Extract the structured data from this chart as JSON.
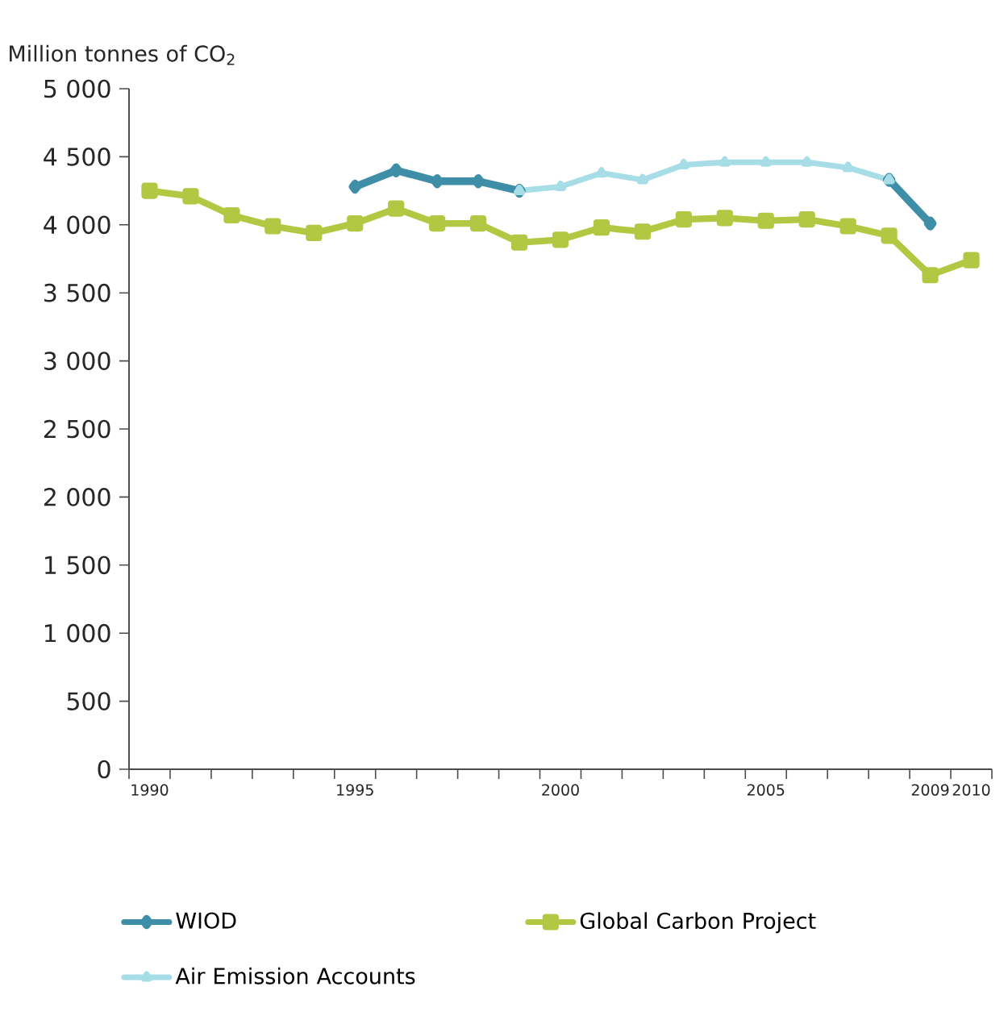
{
  "chart_data": {
    "type": "line",
    "ylabel": "Million tonnes of CO$_{2}$",
    "x": [
      1990,
      1991,
      1992,
      1993,
      1994,
      1995,
      1996,
      1997,
      1998,
      1999,
      2000,
      2001,
      2002,
      2003,
      2004,
      2005,
      2006,
      2007,
      2008,
      2009,
      2010
    ],
    "xlim": [
      1989.5,
      2010.5
    ],
    "xticks": [
      1990,
      1995,
      2000,
      2005,
      2009,
      2010
    ],
    "ylim": [
      0,
      5000
    ],
    "yticks": [
      0,
      500,
      {
        "value": 1000,
        "label": "1 000"
      },
      {
        "value": 1500,
        "label": "1 500"
      },
      {
        "value": 2000,
        "label": "2 000"
      },
      {
        "value": 2500,
        "label": "2 500"
      },
      {
        "value": 3000,
        "label": "3 000"
      },
      {
        "value": 3500,
        "label": "3 500"
      },
      {
        "value": 4000,
        "label": "4 000"
      },
      {
        "value": 4500,
        "label": "4 500"
      },
      {
        "value": 5000,
        "label": "5 000"
      }
    ],
    "grid": false,
    "legend": "bottom",
    "series": [
      {
        "name": "WIOD",
        "color": "#3f8ea8",
        "marker": "diamond",
        "values": [
          null,
          null,
          null,
          null,
          null,
          4280,
          4400,
          4320,
          4320,
          4250,
          null,
          null,
          null,
          null,
          null,
          null,
          null,
          null,
          4330,
          4010,
          null
        ]
      },
      {
        "name": "Global Carbon Project",
        "color": "#b2c843",
        "marker": "square",
        "values": [
          4250,
          4210,
          4070,
          3990,
          3940,
          4010,
          4120,
          4010,
          4010,
          3870,
          3890,
          3980,
          3950,
          4040,
          4050,
          4030,
          4040,
          3990,
          3920,
          3630,
          3740
        ]
      },
      {
        "name": "Air Emission Accounts",
        "color": "#a6dde6",
        "marker": "triangle",
        "values": [
          null,
          null,
          null,
          null,
          null,
          null,
          null,
          null,
          null,
          4250,
          4280,
          4380,
          4330,
          4440,
          4460,
          4460,
          4460,
          4420,
          4330,
          null,
          null
        ]
      }
    ]
  }
}
